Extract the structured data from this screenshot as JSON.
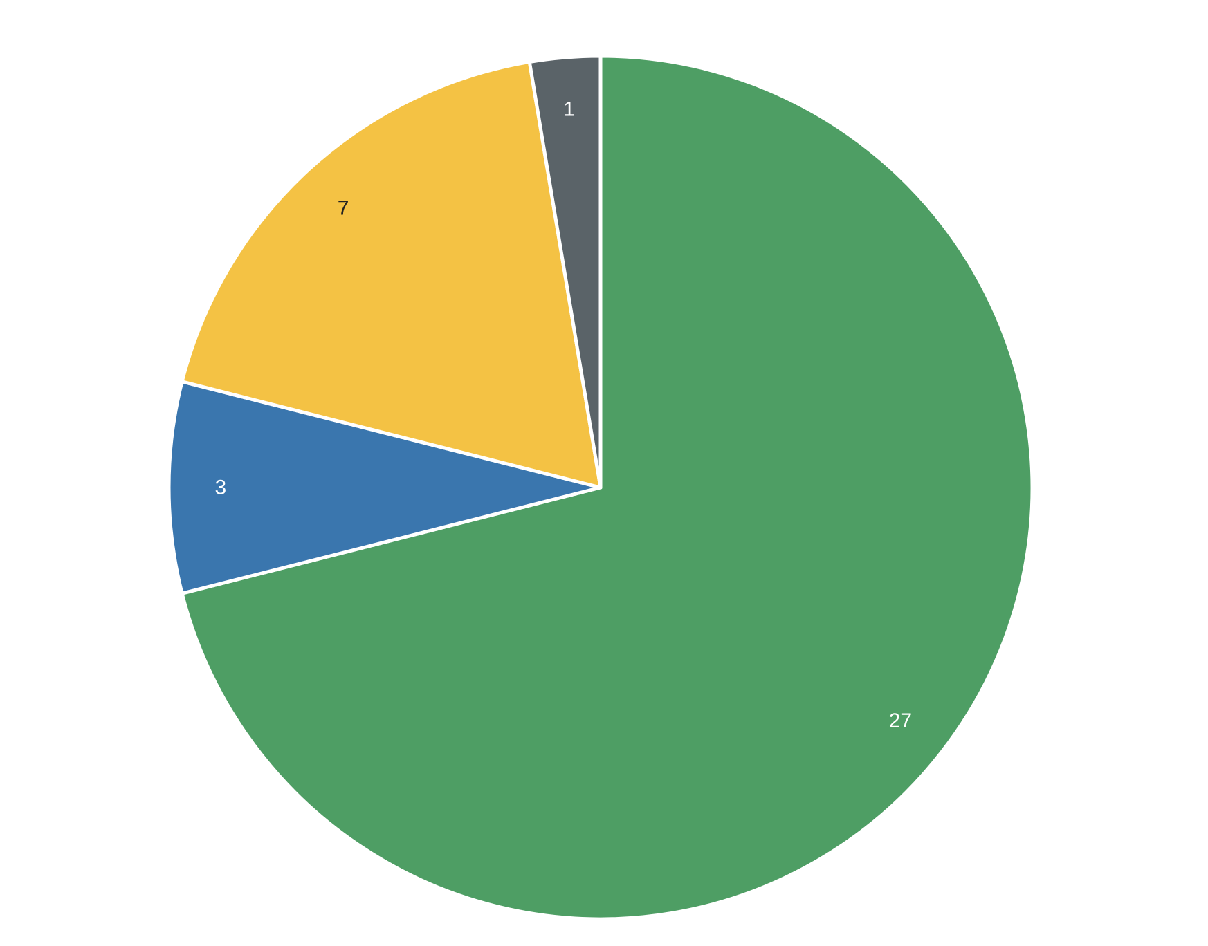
{
  "chart_data": {
    "type": "pie",
    "start": "top",
    "direction": "clockwise",
    "slices": [
      {
        "label": "27",
        "value": 27,
        "color": "#4e9e64",
        "label_color": "#ffffff"
      },
      {
        "label": "3",
        "value": 3,
        "color": "#3a76ae",
        "label_color": "#ffffff"
      },
      {
        "label": "7",
        "value": 7,
        "color": "#f4c244",
        "label_color": "#222222"
      },
      {
        "label": "1",
        "value": 1,
        "color": "#5a6368",
        "label_color": "#ffffff"
      }
    ],
    "legend": "none"
  }
}
